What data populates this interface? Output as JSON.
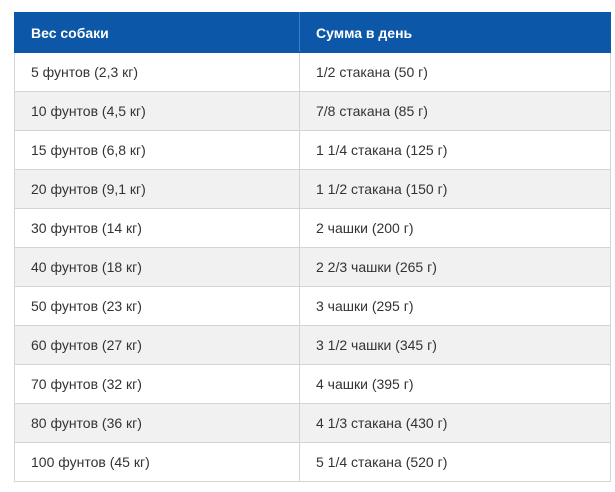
{
  "table": {
    "headers": [
      "Вес собаки",
      "Сумма в день"
    ],
    "rows": [
      [
        "5 фунтов (2,3 кг)",
        "1/2 стакана (50 г)"
      ],
      [
        "10 фунтов (4,5 кг)",
        "7/8 стакана (85 г)"
      ],
      [
        "15 фунтов (6,8 кг)",
        "1 1/4 стакана (125 г)"
      ],
      [
        "20 фунтов (9,1 кг)",
        "1 1/2 стакана (150 г)"
      ],
      [
        "30 фунтов (14 кг)",
        "2 чашки (200 г)"
      ],
      [
        "40 фунтов (18 кг)",
        "2 2/3 чашки (265 г)"
      ],
      [
        "50 фунтов (23 кг)",
        "3 чашки (295 г)"
      ],
      [
        "60 фунтов (27 кг)",
        "3 1/2 чашки (345 г)"
      ],
      [
        "70 фунтов (32 кг)",
        "4 чашки (395 г)"
      ],
      [
        "80 фунтов (36 кг)",
        "4 1/3 стакана (430 г)"
      ],
      [
        "100 фунтов (45 кг)",
        "5 1/4 стакана (520 г)"
      ]
    ]
  },
  "colors": {
    "header_bg": "#0d57a8",
    "row_alt_bg": "#f1f1f1",
    "border": "#d4d4d4"
  }
}
